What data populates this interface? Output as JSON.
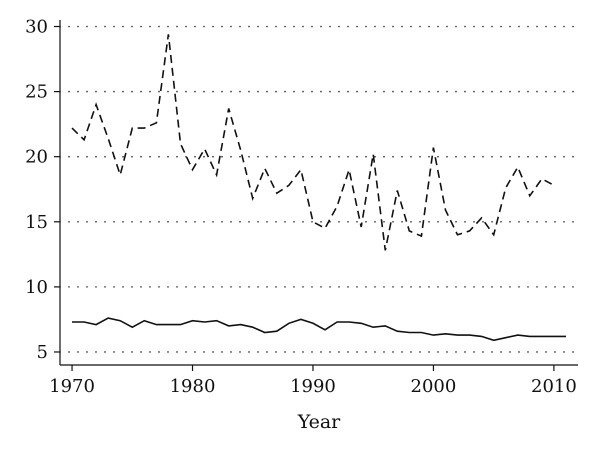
{
  "chart_data": {
    "type": "line",
    "title": "",
    "xlabel": "Year",
    "ylabel": "",
    "xlim": [
      1969,
      2012
    ],
    "ylim": [
      4,
      30.5
    ],
    "x_ticks": [
      1970,
      1980,
      1990,
      2000,
      2010
    ],
    "y_ticks": [
      5,
      10,
      15,
      20,
      25,
      30
    ],
    "grid": {
      "horizontal": "dotted",
      "vertical": "none"
    },
    "legend": "none",
    "x": [
      1970,
      1971,
      1972,
      1973,
      1974,
      1975,
      1976,
      1977,
      1978,
      1979,
      1980,
      1981,
      1982,
      1983,
      1984,
      1985,
      1986,
      1987,
      1988,
      1989,
      1990,
      1991,
      1992,
      1993,
      1994,
      1995,
      1996,
      1997,
      1998,
      1999,
      2000,
      2001,
      2002,
      2003,
      2004,
      2005,
      2006,
      2007,
      2008,
      2009,
      2010,
      2011
    ],
    "series": [
      {
        "style": "dashed",
        "color": "#111111",
        "values": [
          22.2,
          21.3,
          24.0,
          21.4,
          18.6,
          22.2,
          22.2,
          22.6,
          29.4,
          21.0,
          19.0,
          20.6,
          18.6,
          23.7,
          20.5,
          16.8,
          19.1,
          17.2,
          17.8,
          19.0,
          15.0,
          14.5,
          16.2,
          19.0,
          14.6,
          20.2,
          12.8,
          17.4,
          14.3,
          13.9,
          20.7,
          15.9,
          14.0,
          14.3,
          15.3,
          14.0,
          17.6,
          19.2,
          17.0,
          18.3,
          17.8,
          null
        ]
      },
      {
        "style": "solid",
        "color": "#111111",
        "values": [
          7.3,
          7.3,
          7.1,
          7.6,
          7.4,
          6.9,
          7.4,
          7.1,
          7.1,
          7.1,
          7.4,
          7.3,
          7.4,
          7.0,
          7.1,
          6.9,
          6.5,
          6.6,
          7.2,
          7.5,
          7.2,
          6.7,
          7.3,
          7.3,
          7.2,
          6.9,
          7.0,
          6.6,
          6.5,
          6.5,
          6.3,
          6.4,
          6.3,
          6.3,
          6.2,
          5.9,
          6.1,
          6.3,
          6.2,
          6.2,
          6.2,
          6.2
        ]
      }
    ]
  }
}
